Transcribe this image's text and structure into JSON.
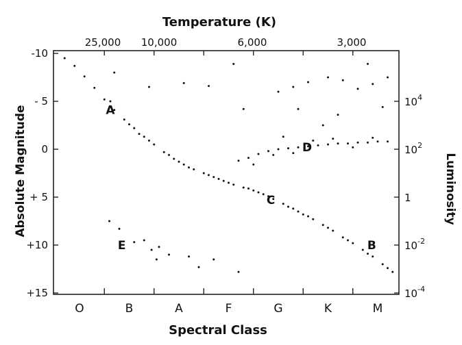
{
  "chart_data": {
    "type": "scatter",
    "title": "Temperature (K)",
    "xlabel": "Spectral Class",
    "ylabel": "Absolute Magnitude",
    "y2label": "Luminosity",
    "x_categories": [
      "O",
      "B",
      "A",
      "F",
      "G",
      "K",
      "M"
    ],
    "top_ticks": [
      "25,000",
      "10,000",
      "6,000",
      "3,000"
    ],
    "ylim": [
      -10,
      15
    ],
    "y_inverted": true,
    "y_ticks": [
      "-10",
      "- 5",
      "0",
      "+ 5",
      "+10",
      "+15"
    ],
    "luminosity_ticks": [
      {
        "mag": -5,
        "base": "10",
        "exp": "4"
      },
      {
        "mag": 0,
        "base": "10",
        "exp": "2"
      },
      {
        "mag": 5,
        "base": "1",
        "exp": ""
      },
      {
        "mag": 10,
        "base": "10",
        "exp": "-2"
      },
      {
        "mag": 15,
        "base": "10",
        "exp": "-4"
      }
    ],
    "region_labels": [
      {
        "text": "A",
        "spectral": 0.62,
        "mag": -4.1
      },
      {
        "text": "B",
        "spectral": 5.88,
        "mag": 10.0
      },
      {
        "text": "C",
        "spectral": 3.85,
        "mag": 5.3
      },
      {
        "text": "D",
        "spectral": 4.58,
        "mag": -0.2
      },
      {
        "text": "E",
        "spectral": 0.85,
        "mag": 10.0
      }
    ],
    "series": [
      {
        "values": [
          [
            -0.3,
            -9.5
          ],
          [
            -0.1,
            -8.7
          ],
          [
            0.1,
            -7.6
          ],
          [
            0.3,
            -6.4
          ],
          [
            0.5,
            -5.2
          ],
          [
            0.7,
            -4.1
          ],
          [
            0.9,
            -3.1
          ],
          [
            1.1,
            -2.2
          ],
          [
            1.3,
            -1.3
          ],
          [
            1.5,
            -0.5
          ],
          [
            1.7,
            0.3
          ],
          [
            1.9,
            1.0
          ],
          [
            2.1,
            1.6
          ],
          [
            2.3,
            2.1
          ],
          [
            2.5,
            2.5
          ],
          [
            2.7,
            2.9
          ],
          [
            2.9,
            3.3
          ],
          [
            3.1,
            3.7
          ],
          [
            3.3,
            4.0
          ],
          [
            3.5,
            4.3
          ],
          [
            3.7,
            4.7
          ],
          [
            3.9,
            5.2
          ],
          [
            4.1,
            5.7
          ],
          [
            4.3,
            6.2
          ],
          [
            4.5,
            6.8
          ],
          [
            4.7,
            7.3
          ],
          [
            4.9,
            7.9
          ],
          [
            5.1,
            8.5
          ],
          [
            5.3,
            9.2
          ],
          [
            5.5,
            9.8
          ],
          [
            5.7,
            10.5
          ],
          [
            5.9,
            11.2
          ],
          [
            6.1,
            12.0
          ],
          [
            6.3,
            12.8
          ],
          [
            6.5,
            13.6
          ],
          [
            0.62,
            -5.0
          ],
          [
            1.0,
            -2.6
          ],
          [
            1.4,
            -0.9
          ],
          [
            1.8,
            0.6
          ],
          [
            2.2,
            1.9
          ],
          [
            2.6,
            2.7
          ],
          [
            3.0,
            3.5
          ],
          [
            3.4,
            4.1
          ],
          [
            3.8,
            4.9
          ],
          [
            4.2,
            6.0
          ],
          [
            4.6,
            7.0
          ],
          [
            5.0,
            8.2
          ],
          [
            5.4,
            9.5
          ],
          [
            5.8,
            10.9
          ],
          [
            6.2,
            12.4
          ],
          [
            1.2,
            -1.6
          ],
          [
            2.0,
            1.3
          ],
          [
            2.8,
            3.1
          ],
          [
            3.6,
            4.5
          ],
          [
            4.4,
            6.5
          ]
        ]
      },
      {
        "values": [
          [
            3.2,
            1.2
          ],
          [
            3.4,
            0.9
          ],
          [
            3.6,
            0.5
          ],
          [
            3.8,
            0.2
          ],
          [
            4.0,
            0.0
          ],
          [
            4.2,
            -0.1
          ],
          [
            4.4,
            -0.2
          ],
          [
            4.6,
            -0.3
          ],
          [
            4.8,
            -0.4
          ],
          [
            5.0,
            -0.5
          ],
          [
            5.2,
            -0.6
          ],
          [
            5.4,
            -0.6
          ],
          [
            5.6,
            -0.7
          ],
          [
            5.8,
            -0.7
          ],
          [
            6.0,
            -0.8
          ],
          [
            6.2,
            -0.8
          ],
          [
            3.5,
            1.6
          ],
          [
            3.9,
            0.6
          ],
          [
            4.3,
            0.4
          ],
          [
            4.7,
            -0.9
          ],
          [
            5.1,
            -1.1
          ],
          [
            5.5,
            -0.2
          ],
          [
            5.9,
            -1.2
          ],
          [
            4.1,
            -1.3
          ]
        ]
      },
      {
        "values": [
          [
            4.0,
            -6.0
          ],
          [
            4.3,
            -6.5
          ],
          [
            4.6,
            -7.0
          ],
          [
            5.0,
            -7.5
          ],
          [
            5.3,
            -7.2
          ],
          [
            5.6,
            -6.3
          ],
          [
            5.9,
            -6.8
          ],
          [
            6.2,
            -7.5
          ],
          [
            6.4,
            -8.5
          ],
          [
            5.8,
            -8.9
          ],
          [
            3.1,
            -8.9
          ],
          [
            2.1,
            -6.9
          ],
          [
            1.4,
            -6.5
          ],
          [
            2.6,
            -6.6
          ],
          [
            4.4,
            -4.2
          ],
          [
            5.2,
            -3.6
          ],
          [
            6.1,
            -4.4
          ],
          [
            4.9,
            -2.5
          ],
          [
            3.3,
            -4.2
          ],
          [
            0.7,
            -8.0
          ]
        ]
      },
      {
        "values": [
          [
            0.6,
            7.5
          ],
          [
            0.8,
            8.3
          ],
          [
            1.3,
            9.5
          ],
          [
            1.45,
            10.5
          ],
          [
            1.55,
            11.5
          ],
          [
            1.8,
            11.0
          ],
          [
            2.2,
            11.2
          ],
          [
            2.7,
            11.5
          ],
          [
            3.2,
            12.8
          ],
          [
            2.4,
            12.3
          ],
          [
            1.1,
            9.7
          ],
          [
            1.6,
            10.2
          ]
        ]
      }
    ]
  }
}
